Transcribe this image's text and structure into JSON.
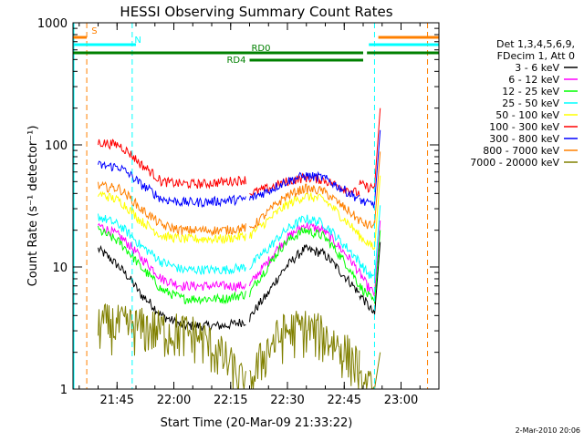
{
  "chart_data": {
    "type": "line",
    "title": "HESSI Observing Summary Count Rates",
    "xlabel": "Start Time (20-Mar-09 21:33:22)",
    "ylabel": "Count Rate (s⁻¹ detector⁻¹)",
    "y_scale": "log",
    "xlim": [
      "21:33:22",
      "23:10:00"
    ],
    "ylim": [
      1,
      1000
    ],
    "x_ticks": [
      "21:45",
      "22:00",
      "22:15",
      "22:30",
      "22:45",
      "23:00"
    ],
    "y_ticks": [
      "1",
      "10",
      "100",
      "1000"
    ],
    "legend_header": [
      "Det 1,3,4,5,6,9,",
      "FDecim 1, Att 0"
    ],
    "legend_position": "right",
    "footer_date": "2-Mar-2010 20:06",
    "colors": {
      "S": "#ff8000",
      "N": "#00ffff",
      "RD": "#008000"
    },
    "status_bars": [
      {
        "label": "S",
        "color": "#ff8000",
        "segments": [
          [
            "21:33:22",
            "21:37:00"
          ],
          [
            "22:54:00",
            "23:10:00"
          ]
        ]
      },
      {
        "label": "N",
        "color": "#00ffff",
        "segments": [
          [
            "21:33:22",
            "21:50:00"
          ],
          [
            "22:51:30",
            "23:10:00"
          ]
        ]
      },
      {
        "label": "RD0",
        "color": "#008000",
        "segments": [
          [
            "21:33:22",
            "22:50:00"
          ],
          [
            "22:51:00",
            "23:10:00"
          ]
        ]
      },
      {
        "label": "RD4",
        "color": "#008000",
        "segments": [
          [
            "22:20:00",
            "22:50:00"
          ]
        ]
      }
    ],
    "vlines": [
      {
        "time": "21:37:00",
        "color": "#ff8000"
      },
      {
        "time": "21:49:00",
        "color": "#00ffff"
      },
      {
        "time": "22:53:00",
        "color": "#00ffff"
      },
      {
        "time": "23:07:00",
        "color": "#ff8000"
      }
    ],
    "segment_time_ranges": [
      [
        "21:40:00",
        "22:19:00"
      ],
      [
        "22:20:00",
        "22:49:00"
      ],
      [
        "22:49:00",
        "22:53:00"
      ]
    ],
    "series": [
      {
        "name": "3 - 6 keV",
        "color": "#000000",
        "values": [
          [
            14,
            10,
            6,
            4,
            3.3,
            3.3,
            3.3,
            3.6
          ],
          [
            3.8,
            6,
            10,
            14,
            13,
            9,
            6
          ],
          [
            6,
            5,
            4
          ]
        ]
      },
      {
        "name": "6 - 12 keV",
        "color": "#ff00ff",
        "values": [
          [
            22,
            18,
            12,
            8,
            7,
            7,
            7,
            7
          ],
          [
            7,
            11,
            17,
            22,
            20,
            14,
            9
          ],
          [
            9,
            7,
            6
          ]
        ]
      },
      {
        "name": "12 - 25 keV",
        "color": "#00ff00",
        "values": [
          [
            20,
            16,
            10,
            6.5,
            5.5,
            5.5,
            5.5,
            6
          ],
          [
            6,
            10,
            16,
            20,
            18,
            12,
            7
          ],
          [
            7,
            6,
            5
          ]
        ]
      },
      {
        "name": "25 - 50 keV",
        "color": "#00ffff",
        "values": [
          [
            26,
            22,
            15,
            11,
            9.5,
            9.5,
            9.5,
            10
          ],
          [
            10,
            14,
            20,
            25,
            23,
            16,
            11
          ],
          [
            11,
            9,
            8
          ]
        ]
      },
      {
        "name": "50 - 100 keV",
        "color": "#ffff00",
        "values": [
          [
            40,
            35,
            24,
            18,
            17,
            17,
            17,
            18
          ],
          [
            18,
            24,
            32,
            38,
            36,
            26,
            18
          ],
          [
            18,
            16,
            14
          ]
        ]
      },
      {
        "name": "100 - 300 keV",
        "color": "#ff0000",
        "values": [
          [
            105,
            100,
            70,
            50,
            48,
            48,
            50,
            52
          ],
          [
            40,
            44,
            50,
            54,
            52,
            45,
            40
          ],
          [
            48,
            45,
            45
          ]
        ]
      },
      {
        "name": "300 - 800 keV",
        "color": "#0000ff",
        "values": [
          [
            68,
            66,
            48,
            36,
            34,
            34,
            35,
            36
          ],
          [
            36,
            42,
            50,
            56,
            54,
            44,
            36
          ],
          [
            36,
            33,
            33
          ]
        ]
      },
      {
        "name": "800 - 7000 keV",
        "color": "#ff8000",
        "values": [
          [
            46,
            44,
            30,
            22,
            20,
            20,
            20,
            21
          ],
          [
            20,
            28,
            38,
            44,
            42,
            32,
            24
          ],
          [
            24,
            22,
            22
          ]
        ]
      },
      {
        "name": "7000 - 20000 keV",
        "color": "#808000",
        "values": [
          [
            3.5,
            3.2,
            2.8,
            1.0
          ],
          [
            1.0,
            2.2,
            3.0,
            3.2,
            2.8,
            2.2,
            1.5
          ],
          [
            1.0
          ]
        ]
      }
    ]
  }
}
